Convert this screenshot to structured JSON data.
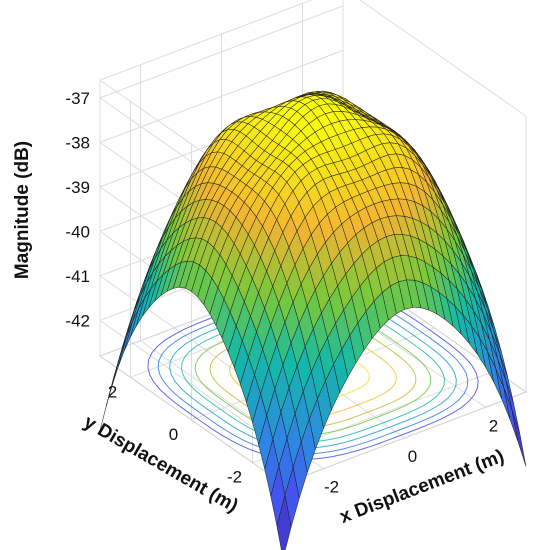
{
  "chart_data": {
    "type": "surface3d",
    "title": "",
    "xlabel": "x Displacement (m)",
    "ylabel": "y Displacement (m)",
    "zlabel": "Magnitude (dB)",
    "xlim": [
      -3,
      3
    ],
    "ylim": [
      -3,
      3
    ],
    "zlim": [
      -42.8,
      -36.6
    ],
    "x_ticks": [
      "-2",
      "0",
      "2"
    ],
    "y_ticks": [
      "-2",
      "0",
      "2"
    ],
    "z_ticks": [
      "-37",
      "-38",
      "-39",
      "-40",
      "-41",
      "-42"
    ],
    "grid": true,
    "colormap": "parula",
    "contour_projection": true,
    "grid_points": 31,
    "peak_magnitude": -36.9,
    "corner_magnitude": -44.5,
    "colors": {
      "low": "#3e26a8",
      "mid_blue": "#2d8be0",
      "teal": "#13b9a8",
      "green": "#7ac93a",
      "yellow_orange": "#f2b432",
      "yellow": "#f9fb0e"
    }
  }
}
